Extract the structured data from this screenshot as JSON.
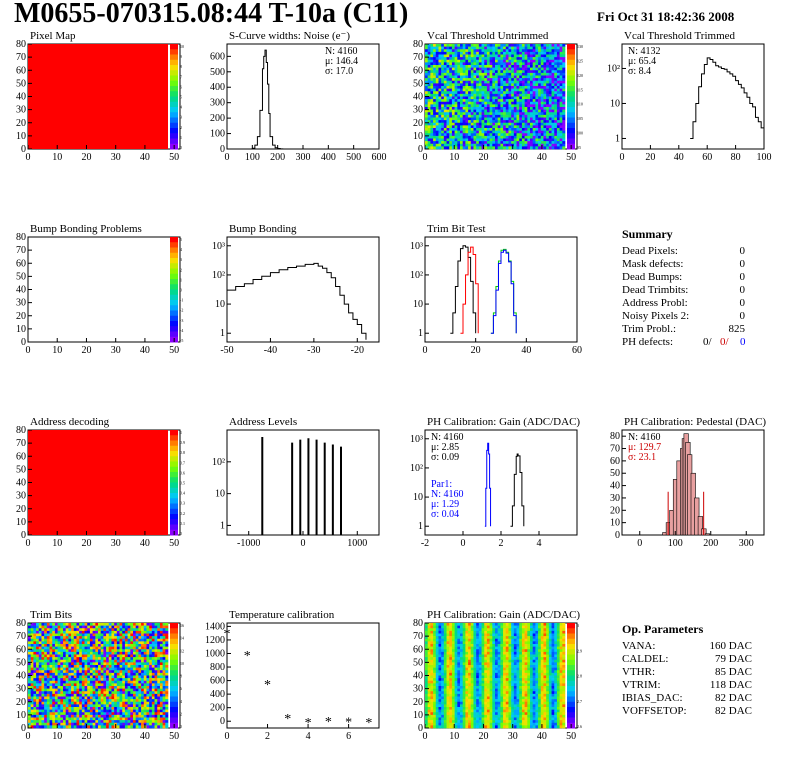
{
  "header": {
    "title": "M0655-070315.08:44 T-10a (C11)",
    "date": "Fri Oct 31 18:42:36 2008"
  },
  "colors": {
    "pixel_map": "#ff0000",
    "pedestal_text": "#cc0000",
    "par1_text": "#0000ff",
    "trim_red": "#ff0000",
    "trim_green": "#00cc00",
    "trim_blue": "#0000ff"
  },
  "chart_data": [
    {
      "id": "pixel-map",
      "type": "heatmap",
      "title": "Pixel Map",
      "x_ticks": [
        "0",
        "10",
        "20",
        "30",
        "40",
        "50"
      ],
      "y_ticks": [
        "0",
        "10",
        "20",
        "30",
        "40",
        "50",
        "60",
        "70",
        "80"
      ],
      "xlim": [
        0,
        52
      ],
      "ylim": [
        0,
        80
      ],
      "palette_labels": [
        "10",
        "9",
        "8",
        "7",
        "6",
        "5",
        "4",
        "3",
        "2",
        "1",
        "0"
      ],
      "fill": "uniform-max"
    },
    {
      "id": "scurve-widths",
      "type": "line",
      "title": "S-Curve widths: Noise (e⁻)",
      "stats": [
        "N: 4160",
        "μ: 146.4",
        "σ: 17.0"
      ],
      "x_ticks": [
        "0",
        "100",
        "200",
        "300",
        "400",
        "500",
        "600"
      ],
      "y_ticks": [
        "0",
        "100",
        "200",
        "300",
        "400",
        "500",
        "600"
      ],
      "xlim": [
        0,
        600
      ],
      "ylim": [
        0,
        680
      ],
      "x": [
        90,
        100,
        110,
        120,
        130,
        140,
        145,
        150,
        155,
        160,
        165,
        170,
        180,
        190,
        200,
        210,
        220
      ],
      "y": [
        0,
        5,
        25,
        80,
        250,
        520,
        600,
        640,
        560,
        420,
        230,
        80,
        25,
        8,
        3,
        1,
        0
      ]
    },
    {
      "id": "vcal-untrimmed",
      "type": "heatmap",
      "title": "Vcal Threshold Untrimmed",
      "x_ticks": [
        "0",
        "10",
        "20",
        "30",
        "40",
        "50"
      ],
      "y_ticks": [
        "0",
        "10",
        "20",
        "30",
        "40",
        "50",
        "60",
        "70",
        "80"
      ],
      "xlim": [
        0,
        52
      ],
      "ylim": [
        0,
        80
      ],
      "palette_labels": [
        "130",
        "125",
        "120",
        "115",
        "110",
        "105",
        "100",
        "95"
      ],
      "fill": "noisy-threshold"
    },
    {
      "id": "vcal-trimmed",
      "type": "line",
      "title": "Vcal Threshold Trimmed",
      "stats": [
        "N: 4132",
        "μ: 65.4",
        "σ: 8.4"
      ],
      "x_ticks": [
        "0",
        "20",
        "40",
        "60",
        "80",
        "100"
      ],
      "y_ticks": [
        "1",
        "10",
        "10²"
      ],
      "xlim": [
        0,
        100
      ],
      "log_y": true,
      "ylim": [
        0.5,
        500
      ],
      "x": [
        48,
        50,
        52,
        54,
        56,
        58,
        60,
        62,
        64,
        66,
        68,
        70,
        72,
        74,
        76,
        78,
        80,
        82,
        84,
        86,
        88,
        90,
        92,
        94,
        96,
        98,
        100
      ],
      "y": [
        1,
        3,
        10,
        30,
        70,
        130,
        200,
        180,
        150,
        120,
        110,
        100,
        95,
        80,
        70,
        60,
        45,
        35,
        28,
        20,
        15,
        10,
        8,
        4,
        3,
        2,
        1
      ]
    },
    {
      "id": "bump-bonding-problems",
      "type": "heatmap",
      "title": "Bump Bonding Problems",
      "x_ticks": [
        "0",
        "10",
        "20",
        "30",
        "40",
        "50"
      ],
      "y_ticks": [
        "0",
        "10",
        "20",
        "30",
        "40",
        "50",
        "60",
        "70",
        "80"
      ],
      "xlim": [
        0,
        52
      ],
      "ylim": [
        0,
        80
      ],
      "palette_labels": [
        "5",
        "4",
        "3",
        "2",
        "1",
        "0",
        "-1",
        "-2",
        "-3",
        "-4",
        "-5"
      ],
      "fill": "empty"
    },
    {
      "id": "bump-bonding",
      "type": "line",
      "title": "Bump Bonding",
      "x_ticks": [
        "-50",
        "-40",
        "-30",
        "-20"
      ],
      "y_ticks": [
        "1",
        "10",
        "10²",
        "10³"
      ],
      "xlim": [
        -50,
        -15
      ],
      "log_y": true,
      "ylim": [
        0.5,
        2000
      ],
      "x": [
        -50,
        -48,
        -46,
        -44,
        -42,
        -40,
        -38,
        -36,
        -34,
        -32,
        -30,
        -29,
        -28,
        -27,
        -26,
        -25,
        -24,
        -23,
        -22,
        -21,
        -20,
        -19,
        -18
      ],
      "y": [
        30,
        40,
        50,
        70,
        90,
        120,
        150,
        180,
        200,
        230,
        250,
        200,
        170,
        120,
        80,
        40,
        20,
        10,
        5,
        3,
        2,
        1,
        0.6
      ]
    },
    {
      "id": "trim-bit-test",
      "type": "line",
      "title": "Trim Bit Test",
      "x_ticks": [
        "0",
        "20",
        "40",
        "60"
      ],
      "y_ticks": [
        "1",
        "10",
        "10²",
        "10³"
      ],
      "xlim": [
        0,
        60
      ],
      "log_y": true,
      "ylim": [
        0.5,
        2000
      ],
      "series": [
        {
          "color": "#000000",
          "x": [
            10,
            11,
            12,
            13,
            14,
            15,
            16,
            17,
            18,
            19,
            20
          ],
          "y": [
            1,
            5,
            40,
            300,
            800,
            1000,
            900,
            400,
            60,
            5,
            1
          ]
        },
        {
          "color": "#ff0000",
          "x": [
            14,
            15,
            16,
            17,
            18,
            19,
            20,
            21
          ],
          "y": [
            1,
            10,
            100,
            600,
            900,
            500,
            50,
            1
          ]
        },
        {
          "color": "#00cc00",
          "x": [
            26,
            27,
            28,
            29,
            30,
            31,
            32,
            33,
            34,
            35,
            36
          ],
          "y": [
            1,
            5,
            40,
            300,
            700,
            750,
            600,
            300,
            60,
            5,
            1
          ]
        },
        {
          "color": "#0000ff",
          "x": [
            26,
            27,
            28,
            29,
            30,
            31,
            32,
            33,
            34,
            35,
            36
          ],
          "y": [
            1,
            4,
            30,
            250,
            600,
            700,
            560,
            280,
            50,
            4,
            1
          ]
        }
      ]
    },
    {
      "id": "summary",
      "type": "table",
      "title": "Summary",
      "rows": [
        {
          "label": "Dead Pixels:",
          "value": "0"
        },
        {
          "label": "Mask defects:",
          "value": "0"
        },
        {
          "label": "Dead Bumps:",
          "value": "0"
        },
        {
          "label": "Dead Trimbits:",
          "value": "0"
        },
        {
          "label": "Address Probl:",
          "value": "0"
        },
        {
          "label": "Noisy Pixels 2:",
          "value": "0"
        },
        {
          "label": "Trim Probl.:",
          "value": "825"
        }
      ],
      "ph_defects": {
        "label": "PH defects:",
        "v1": "0/",
        "v2": "0/",
        "v3": "0"
      }
    },
    {
      "id": "address-decoding",
      "type": "heatmap",
      "title": "Address decoding",
      "x_ticks": [
        "0",
        "10",
        "20",
        "30",
        "40",
        "50"
      ],
      "y_ticks": [
        "0",
        "10",
        "20",
        "30",
        "40",
        "50",
        "60",
        "70",
        "80"
      ],
      "xlim": [
        0,
        52
      ],
      "ylim": [
        0,
        80
      ],
      "palette_labels": [
        "1",
        "0.9",
        "0.8",
        "0.7",
        "0.6",
        "0.5",
        "0.4",
        "0.3",
        "0.2",
        "0.1",
        "0"
      ],
      "fill": "uniform-max"
    },
    {
      "id": "address-levels",
      "type": "bar",
      "title": "Address Levels",
      "x_ticks": [
        "-1000",
        "0",
        "1000"
      ],
      "y_ticks": [
        "1",
        "10",
        "10²"
      ],
      "xlim": [
        -1400,
        1400
      ],
      "log_y": true,
      "ylim": [
        0.5,
        1000
      ],
      "x": [
        -750,
        -200,
        -50,
        100,
        250,
        400,
        550,
        700
      ],
      "y": [
        600,
        400,
        500,
        550,
        500,
        400,
        350,
        300
      ]
    },
    {
      "id": "ph-gain",
      "type": "line",
      "title": "PH Calibration: Gain (ADC/DAC)",
      "stats": [
        "N: 4160",
        "μ: 2.85",
        "σ: 0.09"
      ],
      "par1": [
        "Par1:",
        "N: 4160",
        "μ: 1.29",
        "σ: 0.04"
      ],
      "x_ticks": [
        "-2",
        "0",
        "2",
        "4"
      ],
      "y_ticks": [
        "1",
        "10",
        "10²",
        "10³"
      ],
      "xlim": [
        -2,
        6
      ],
      "log_y": true,
      "ylim": [
        0.5,
        2000
      ],
      "series": [
        {
          "color": "#000000",
          "x": [
            2.5,
            2.6,
            2.7,
            2.8,
            2.85,
            2.9,
            3.0,
            3.1,
            3.2
          ],
          "y": [
            1,
            5,
            60,
            250,
            300,
            260,
            70,
            5,
            1
          ]
        },
        {
          "color": "#0000ff",
          "x": [
            1.15,
            1.2,
            1.25,
            1.3,
            1.35,
            1.4,
            1.45
          ],
          "y": [
            1,
            20,
            400,
            700,
            300,
            20,
            1
          ]
        }
      ]
    },
    {
      "id": "ph-pedestal",
      "type": "bar",
      "title": "PH Calibration: Pedestal (DAC)",
      "stats": [
        "N: 4160",
        "μ: 129.7",
        "σ: 23.1"
      ],
      "x_ticks": [
        "0",
        "100",
        "200",
        "300"
      ],
      "y_ticks": [
        "0",
        "10",
        "20",
        "30",
        "40",
        "50",
        "60",
        "70",
        "80"
      ],
      "xlim": [
        -50,
        350
      ],
      "ylim": [
        0,
        85
      ],
      "x": [
        70,
        80,
        90,
        100,
        110,
        120,
        125,
        130,
        135,
        140,
        150,
        160,
        170,
        180,
        190
      ],
      "y": [
        2,
        10,
        20,
        45,
        60,
        70,
        78,
        82,
        75,
        65,
        50,
        30,
        15,
        5,
        1
      ]
    },
    {
      "id": "trim-bits",
      "type": "heatmap",
      "title": "Trim Bits",
      "x_ticks": [
        "0",
        "10",
        "20",
        "30",
        "40",
        "50"
      ],
      "y_ticks": [
        "0",
        "10",
        "20",
        "30",
        "40",
        "50",
        "60",
        "70",
        "80"
      ],
      "xlim": [
        0,
        52
      ],
      "ylim": [
        0,
        80
      ],
      "palette_labels": [
        "16",
        "14",
        "12",
        "10",
        "8",
        "6",
        "4",
        "2",
        "0"
      ],
      "fill": "random-trim"
    },
    {
      "id": "temperature-calibration",
      "type": "scatter",
      "title": "Temperature calibration",
      "x_ticks": [
        "0",
        "2",
        "4",
        "6"
      ],
      "y_ticks": [
        "0",
        "200",
        "400",
        "600",
        "800",
        "1000",
        "1200",
        "1400"
      ],
      "xlim": [
        0,
        7.5
      ],
      "ylim": [
        -100,
        1450
      ],
      "x": [
        0,
        1,
        2,
        3,
        4,
        5,
        6,
        7
      ],
      "y": [
        1300,
        980,
        550,
        50,
        -10,
        0,
        -5,
        -10
      ]
    },
    {
      "id": "ph-gain-map",
      "type": "heatmap",
      "title": "PH Calibration: Gain (ADC/DAC)",
      "x_ticks": [
        "0",
        "10",
        "20",
        "30",
        "40",
        "50"
      ],
      "y_ticks": [
        "0",
        "10",
        "20",
        "30",
        "40",
        "50",
        "60",
        "70",
        "80"
      ],
      "xlim": [
        0,
        52
      ],
      "ylim": [
        0,
        80
      ],
      "palette_labels": [
        "3",
        "2.9",
        "2.8",
        "2.7",
        "2.6"
      ],
      "fill": "column-gain"
    },
    {
      "id": "op-parameters",
      "type": "table",
      "title": "Op. Parameters",
      "rows": [
        {
          "label": "VANA:",
          "value": "160 DAC"
        },
        {
          "label": "CALDEL:",
          "value": "79 DAC"
        },
        {
          "label": "VTHR:",
          "value": "85 DAC"
        },
        {
          "label": "VTRIM:",
          "value": "118 DAC"
        },
        {
          "label": "IBIAS_DAC:",
          "value": "82 DAC"
        },
        {
          "label": "VOFFSETOP:",
          "value": "82 DAC"
        }
      ]
    }
  ]
}
